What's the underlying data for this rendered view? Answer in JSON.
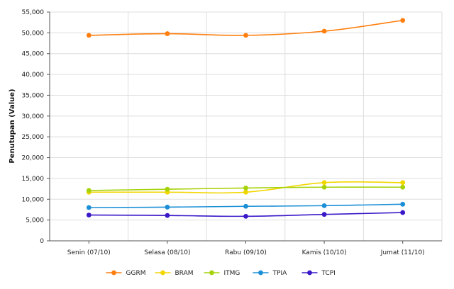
{
  "chart_data": {
    "type": "line",
    "title": "",
    "xlabel": "",
    "ylabel": "Penutupan (Value)",
    "categories": [
      "Senin (07/10)",
      "Selasa (08/10)",
      "Rabu (09/10)",
      "Kamis (10/10)",
      "Jumat (11/10)"
    ],
    "ylim": [
      0,
      55000
    ],
    "yticks": [
      0,
      5000,
      10000,
      15000,
      20000,
      25000,
      30000,
      35000,
      40000,
      45000,
      50000,
      55000
    ],
    "ytick_labels": [
      "0",
      "5,000",
      "10,000",
      "15,000",
      "20,000",
      "25,000",
      "30,000",
      "35,000",
      "40,000",
      "45,000",
      "50,000",
      "55,000"
    ],
    "grid": true,
    "legend_position": "bottom",
    "series": [
      {
        "name": "GGRM",
        "color": "#ff7f0e",
        "values": [
          49400,
          49800,
          49400,
          50400,
          53000
        ]
      },
      {
        "name": "BRAM",
        "color": "#f2d600",
        "values": [
          11700,
          11700,
          11700,
          14000,
          14000
        ]
      },
      {
        "name": "ITMG",
        "color": "#a6d20a",
        "values": [
          12100,
          12400,
          12700,
          12900,
          12900
        ]
      },
      {
        "name": "TPIA",
        "color": "#1a8fd6",
        "values": [
          8000,
          8100,
          8300,
          8450,
          8800
        ]
      },
      {
        "name": "TCPI",
        "color": "#3a18c8",
        "values": [
          6200,
          6100,
          5900,
          6350,
          6800
        ]
      }
    ]
  }
}
